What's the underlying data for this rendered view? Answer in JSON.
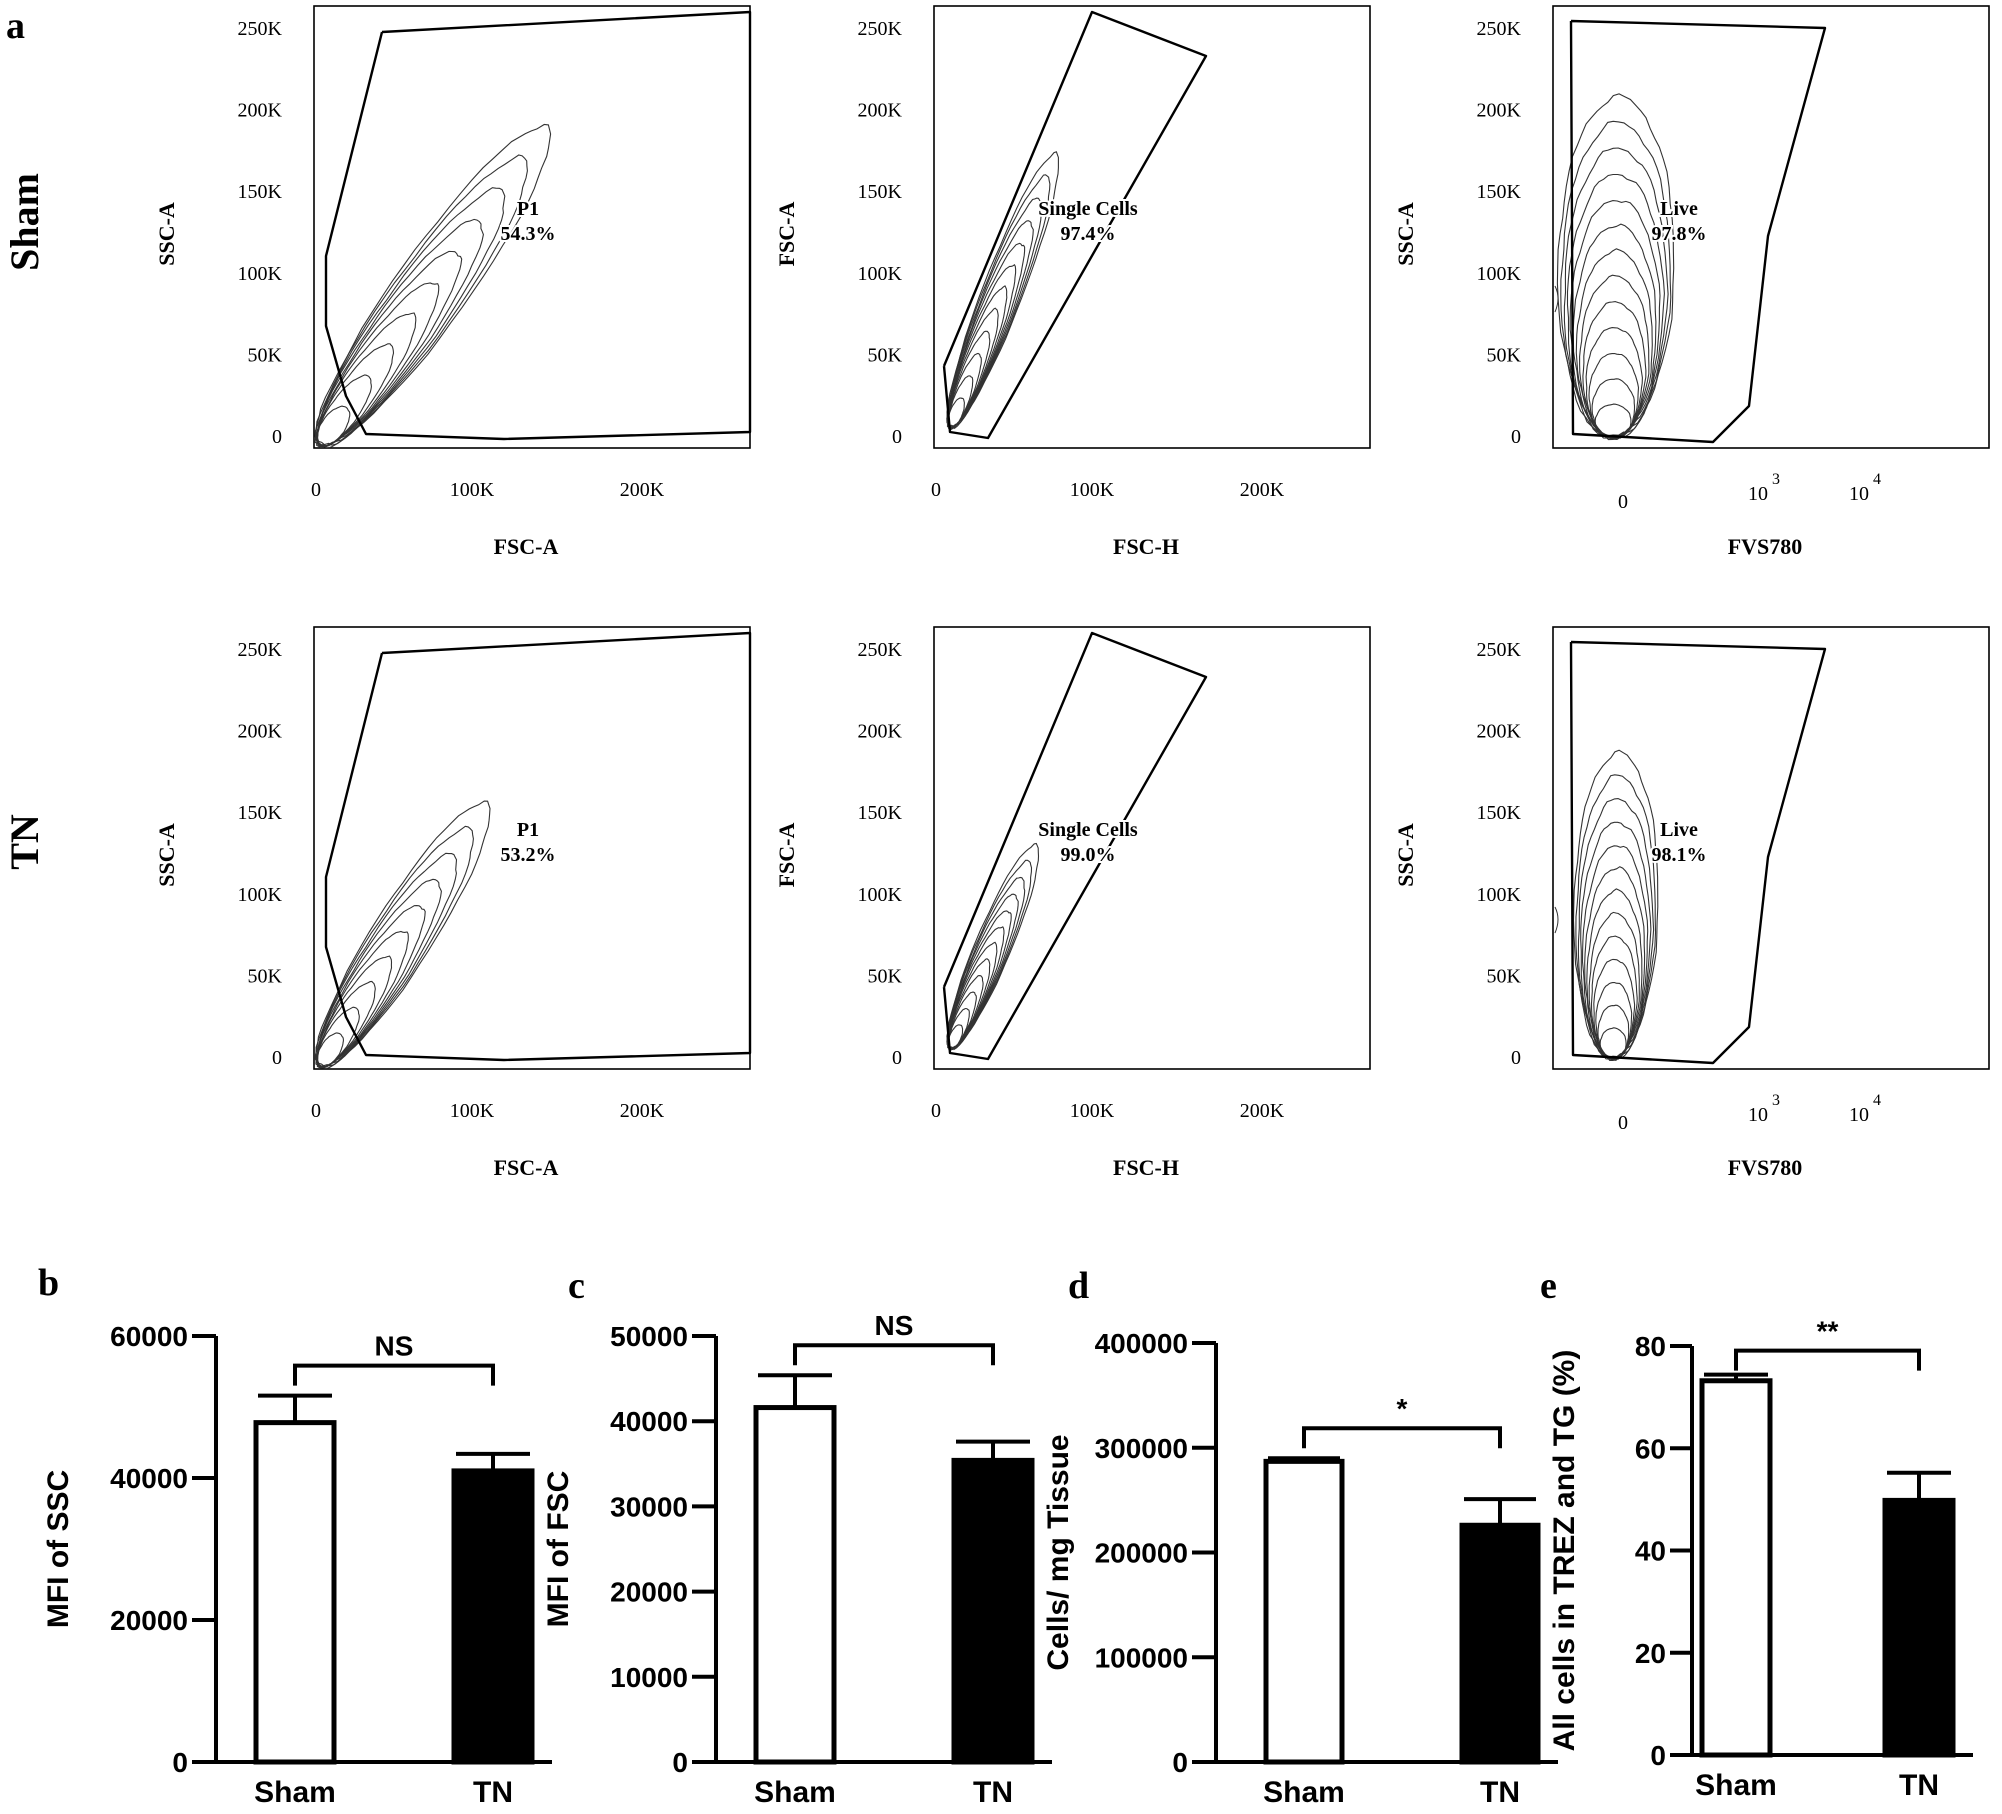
{
  "figure": {
    "panel_letters": {
      "a": "a",
      "b": "b",
      "c": "c",
      "d": "d",
      "e": "e"
    },
    "row_labels": [
      "Sham",
      "TN"
    ]
  },
  "flow_panels": [
    {
      "row": 0,
      "col": 0,
      "xlabel": "FSC-A",
      "ylabel": "SSC-A",
      "yticks": [
        "250K",
        "200K",
        "150K",
        "100K",
        "50K",
        "0"
      ],
      "xticks": [
        "0",
        "100K",
        "200K"
      ],
      "gate_name": "P1",
      "gate_pct": "54.3%",
      "gate_note": "P1 54.3%"
    },
    {
      "row": 0,
      "col": 1,
      "xlabel": "FSC-H",
      "ylabel": "FSC-A",
      "yticks": [
        "250K",
        "200K",
        "150K",
        "100K",
        "50K",
        "0"
      ],
      "xticks": [
        "0",
        "100K",
        "200K"
      ],
      "gate_name": "Single Cells",
      "gate_pct": "97.4%"
    },
    {
      "row": 0,
      "col": 2,
      "xlabel": "FVS780",
      "ylabel": "SSC-A",
      "yticks": [
        "250K",
        "200K",
        "150K",
        "100K",
        "50K",
        "0"
      ],
      "xticks_log": [
        {
          "base": "0",
          "exp": ""
        },
        {
          "base": "10",
          "exp": "3"
        },
        {
          "base": "10",
          "exp": "4"
        }
      ],
      "gate_name": "Live",
      "gate_pct": "97.8%"
    },
    {
      "row": 1,
      "col": 0,
      "xlabel": "FSC-A",
      "ylabel": "SSC-A",
      "yticks": [
        "250K",
        "200K",
        "150K",
        "100K",
        "50K",
        "0"
      ],
      "xticks": [
        "0",
        "100K",
        "200K"
      ],
      "gate_name": "P1",
      "gate_pct": "53.2%"
    },
    {
      "row": 1,
      "col": 1,
      "xlabel": "FSC-H",
      "ylabel": "FSC-A",
      "yticks": [
        "250K",
        "200K",
        "150K",
        "100K",
        "50K",
        "0"
      ],
      "xticks": [
        "0",
        "100K",
        "200K"
      ],
      "gate_name": "Single Cells",
      "gate_pct": "99.0%"
    },
    {
      "row": 1,
      "col": 2,
      "xlabel": "FVS780",
      "ylabel": "SSC-A",
      "yticks": [
        "250K",
        "200K",
        "150K",
        "100K",
        "50K",
        "0"
      ],
      "xticks_log": [
        {
          "base": "0",
          "exp": ""
        },
        {
          "base": "10",
          "exp": "3"
        },
        {
          "base": "10",
          "exp": "4"
        }
      ],
      "gate_name": "Live",
      "gate_pct": "98.1%"
    }
  ],
  "chart_data": [
    {
      "panel": "b",
      "type": "bar",
      "categories": [
        "Sham",
        "TN"
      ],
      "values": [
        47800,
        41000
      ],
      "errors": [
        3800,
        2400
      ],
      "fills": [
        "#ffffff",
        "#000000"
      ],
      "ylabel": "MFI of SSC",
      "ylim": [
        0,
        60000
      ],
      "yticks": [
        0,
        20000,
        40000,
        60000
      ],
      "significance": "NS"
    },
    {
      "panel": "c",
      "type": "bar",
      "categories": [
        "Sham",
        "TN"
      ],
      "values": [
        41600,
        35400
      ],
      "errors": [
        3800,
        2200
      ],
      "fills": [
        "#ffffff",
        "#000000"
      ],
      "ylabel": "MFI of FSC",
      "ylim": [
        0,
        50000
      ],
      "yticks": [
        0,
        10000,
        20000,
        30000,
        40000,
        50000
      ],
      "significance": "NS"
    },
    {
      "panel": "d",
      "type": "bar",
      "categories": [
        "Sham",
        "TN"
      ],
      "values": [
        287000,
        226000
      ],
      "errors": [
        3000,
        25000
      ],
      "fills": [
        "#ffffff",
        "#000000"
      ],
      "ylabel": "Cells/ mg Tissue",
      "ylim": [
        0,
        400000
      ],
      "yticks": [
        0,
        100000,
        200000,
        300000,
        400000
      ],
      "significance": "*"
    },
    {
      "panel": "e",
      "type": "bar",
      "categories": [
        "Sham",
        "TN"
      ],
      "values": [
        73.2,
        49.8
      ],
      "errors": [
        1.2,
        5.4
      ],
      "fills": [
        "#ffffff",
        "#000000"
      ],
      "ylabel": "All cells in TREZ and TG (%)",
      "ylim": [
        0,
        80
      ],
      "yticks": [
        0,
        20,
        40,
        60,
        80
      ],
      "significance": "**"
    }
  ]
}
